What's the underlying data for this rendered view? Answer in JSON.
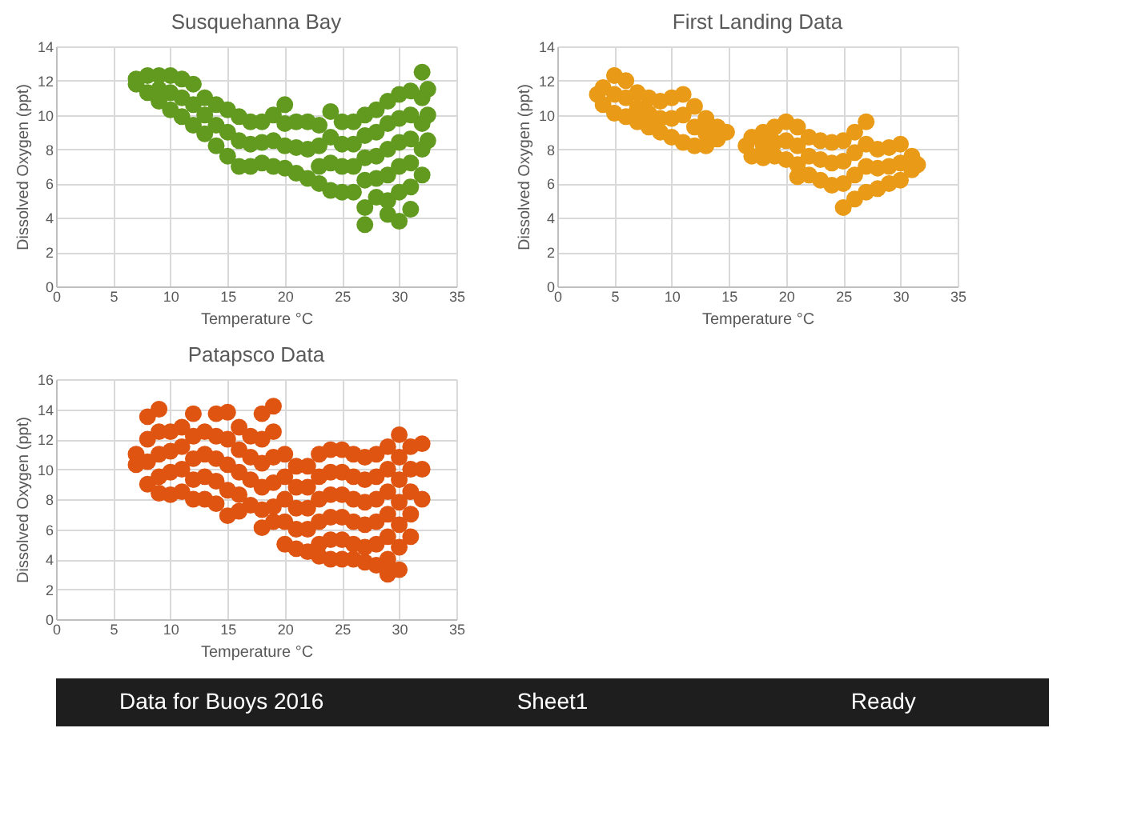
{
  "chart_data": [
    {
      "type": "scatter",
      "title": "Susquehanna Bay",
      "xlabel": "Temperature °C",
      "ylabel": "Dissolved Oxygen (ppt)",
      "color": "#619a1f",
      "marker": "circle",
      "grid": true,
      "xlim": [
        0,
        35
      ],
      "xticks": [
        0,
        5,
        10,
        15,
        20,
        25,
        30,
        35
      ],
      "ylim": [
        0,
        14
      ],
      "yticks": [
        0,
        2,
        4,
        6,
        8,
        10,
        12,
        14
      ],
      "x": [
        7,
        7,
        8,
        8,
        9,
        9,
        9,
        10,
        10,
        10,
        11,
        11,
        11,
        12,
        12,
        12,
        13,
        13,
        13,
        14,
        14,
        14,
        15,
        15,
        15,
        16,
        16,
        16,
        17,
        17,
        17,
        18,
        18,
        18,
        19,
        19,
        19,
        20,
        20,
        20,
        20,
        21,
        21,
        21,
        22,
        22,
        22,
        23,
        23,
        23,
        23,
        24,
        24,
        24,
        24,
        25,
        25,
        25,
        25,
        26,
        26,
        26,
        26,
        27,
        27,
        27,
        27,
        27,
        27,
        28,
        28,
        28,
        28,
        28,
        29,
        29,
        29,
        29,
        29,
        29,
        30,
        30,
        30,
        30,
        30,
        30,
        31,
        31,
        31,
        31,
        31,
        31,
        32,
        32,
        32,
        32,
        32,
        32.5,
        32.5,
        32.5
      ],
      "values": [
        12.1,
        11.8,
        12.3,
        11.3,
        12.3,
        11.5,
        10.8,
        12.3,
        11.3,
        10.3,
        12.1,
        11.0,
        9.9,
        11.8,
        10.6,
        9.4,
        11.0,
        10.0,
        8.9,
        10.6,
        9.4,
        8.2,
        10.3,
        9.0,
        7.6,
        9.9,
        8.5,
        7.0,
        9.6,
        8.3,
        7.0,
        9.6,
        8.4,
        7.2,
        10.0,
        8.5,
        7.0,
        10.6,
        9.5,
        8.2,
        6.9,
        9.6,
        8.1,
        6.6,
        9.6,
        8.0,
        6.3,
        9.4,
        8.2,
        7.0,
        6.0,
        10.2,
        8.7,
        7.2,
        5.6,
        9.6,
        8.3,
        7.0,
        5.5,
        9.6,
        8.3,
        7.0,
        5.5,
        10.0,
        8.8,
        7.5,
        6.2,
        4.6,
        3.6,
        10.3,
        9.0,
        7.6,
        6.3,
        5.2,
        10.8,
        9.5,
        8.0,
        6.5,
        5.0,
        4.2,
        11.2,
        9.8,
        8.4,
        7.0,
        5.5,
        3.8,
        11.4,
        10.0,
        8.6,
        7.2,
        5.8,
        4.5,
        12.5,
        11.0,
        9.5,
        8.0,
        6.5,
        11.5,
        10.0,
        8.5
      ]
    },
    {
      "type": "scatter",
      "title": "First Landing Data",
      "xlabel": "Temperature °C",
      "ylabel": "Dissolved Oxygen (ppt)",
      "color": "#e99a16",
      "marker": "circle",
      "grid": true,
      "xlim": [
        0,
        35
      ],
      "xticks": [
        0,
        5,
        10,
        15,
        20,
        25,
        30,
        35
      ],
      "ylim": [
        0,
        14
      ],
      "yticks": [
        0,
        2,
        4,
        6,
        8,
        10,
        12,
        14
      ],
      "x": [
        3.5,
        4,
        4,
        5,
        5,
        5,
        6,
        6,
        6,
        7,
        7,
        7,
        8,
        8,
        8,
        9,
        9,
        9,
        10,
        10,
        10,
        11,
        11,
        11,
        12,
        12,
        12,
        13,
        13,
        13,
        14,
        14,
        14.8,
        16.5,
        17,
        17,
        18,
        18,
        18,
        19,
        19,
        19,
        20,
        20,
        20,
        21,
        21,
        21,
        21,
        22,
        22,
        22,
        23,
        23,
        23,
        24,
        24,
        24,
        25,
        25,
        25,
        25,
        26,
        26,
        26,
        26,
        27,
        27,
        27,
        27,
        28,
        28,
        28,
        29,
        29,
        29,
        30,
        30,
        30,
        31,
        31,
        31.5
      ],
      "values": [
        11.2,
        11.6,
        10.6,
        12.3,
        11.2,
        10.1,
        12.0,
        11.0,
        9.9,
        11.3,
        10.4,
        9.6,
        11.0,
        10.1,
        9.3,
        10.8,
        9.8,
        9.0,
        11.0,
        9.8,
        8.7,
        11.2,
        10.0,
        8.4,
        10.5,
        9.3,
        8.2,
        9.8,
        8.9,
        8.2,
        9.3,
        8.6,
        9.0,
        8.2,
        8.7,
        7.6,
        9.0,
        8.2,
        7.5,
        9.3,
        8.4,
        7.6,
        9.6,
        8.5,
        7.4,
        9.3,
        8.2,
        7.1,
        6.4,
        8.7,
        7.6,
        6.5,
        8.5,
        7.4,
        6.2,
        8.4,
        7.2,
        5.9,
        8.5,
        7.3,
        6.0,
        4.6,
        9.0,
        7.8,
        6.5,
        5.1,
        9.6,
        8.3,
        7.0,
        5.5,
        8.0,
        6.9,
        5.7,
        8.1,
        7.0,
        6.0,
        8.3,
        7.2,
        6.2,
        7.6,
        6.8,
        7.1
      ]
    },
    {
      "type": "scatter",
      "title": "Patapsco Data",
      "xlabel": "Temperature °C",
      "ylabel": "Dissolved Oxygen (ppt)",
      "color": "#de5410",
      "marker": "circle",
      "grid": true,
      "xlim": [
        0,
        35
      ],
      "xticks": [
        0,
        5,
        10,
        15,
        20,
        25,
        30,
        35
      ],
      "ylim": [
        0,
        16
      ],
      "yticks": [
        0,
        2,
        4,
        6,
        8,
        10,
        12,
        14,
        16
      ],
      "x": [
        7,
        7,
        8,
        8,
        8,
        8,
        9,
        9,
        9,
        9,
        9,
        10,
        10,
        10,
        10,
        11,
        11,
        11,
        11,
        12,
        12,
        12,
        12,
        12,
        13,
        13,
        13,
        13,
        14,
        14,
        14,
        14,
        14,
        15,
        15,
        15,
        15,
        15,
        16,
        16,
        16,
        16,
        16,
        17,
        17,
        17,
        17,
        18,
        18,
        18,
        18,
        18,
        18,
        19,
        19,
        19,
        19,
        19,
        19,
        20,
        20,
        20,
        20,
        20,
        21,
        21,
        21,
        21,
        21,
        22,
        22,
        22,
        22,
        22,
        23,
        23,
        23,
        23,
        23,
        23,
        24,
        24,
        24,
        24,
        24,
        24,
        25,
        25,
        25,
        25,
        25,
        25,
        26,
        26,
        26,
        26,
        26,
        26,
        27,
        27,
        27,
        27,
        27,
        27,
        28,
        28,
        28,
        28,
        28,
        28,
        29,
        29,
        29,
        29,
        29,
        29,
        29,
        30,
        30,
        30,
        30,
        30,
        30,
        30,
        31,
        31,
        31,
        31,
        31,
        32,
        32,
        32
      ],
      "values": [
        11.0,
        10.3,
        13.5,
        12.0,
        10.5,
        9.0,
        14.0,
        12.5,
        11.0,
        9.5,
        8.4,
        12.5,
        11.2,
        9.8,
        8.3,
        12.8,
        11.5,
        10.0,
        8.5,
        13.7,
        12.2,
        10.7,
        9.3,
        8.0,
        12.5,
        11.0,
        9.5,
        8.0,
        13.7,
        12.2,
        10.7,
        9.2,
        7.7,
        13.8,
        12.0,
        10.3,
        8.6,
        6.9,
        12.8,
        11.3,
        9.8,
        8.3,
        7.2,
        12.2,
        10.8,
        9.3,
        7.6,
        13.7,
        12.0,
        10.4,
        8.8,
        7.3,
        6.1,
        14.2,
        12.5,
        10.8,
        9.1,
        7.5,
        6.5,
        11.0,
        9.5,
        8.0,
        6.5,
        5.0,
        10.2,
        8.8,
        7.4,
        6.0,
        4.7,
        10.2,
        8.8,
        7.4,
        6.0,
        4.5,
        11.0,
        9.5,
        8.0,
        6.5,
        5.0,
        4.2,
        11.3,
        9.8,
        8.3,
        6.8,
        5.3,
        4.0,
        11.3,
        9.8,
        8.3,
        6.8,
        5.3,
        4.0,
        11.0,
        9.5,
        8.0,
        6.5,
        5.0,
        4.0,
        10.8,
        9.3,
        7.8,
        6.3,
        4.8,
        3.8,
        11.0,
        9.5,
        8.0,
        6.5,
        5.0,
        3.6,
        11.5,
        10.0,
        8.5,
        7.0,
        5.5,
        4.0,
        3.0,
        12.3,
        10.8,
        9.3,
        7.8,
        6.3,
        4.8,
        3.3,
        11.5,
        10.0,
        8.5,
        7.0,
        5.5,
        11.7,
        10.0,
        8.0
      ]
    },
    {
      "type": "other",
      "annotations": [
        "Data for Buoys 2016",
        "Sheet1",
        "Ready"
      ]
    }
  ]
}
